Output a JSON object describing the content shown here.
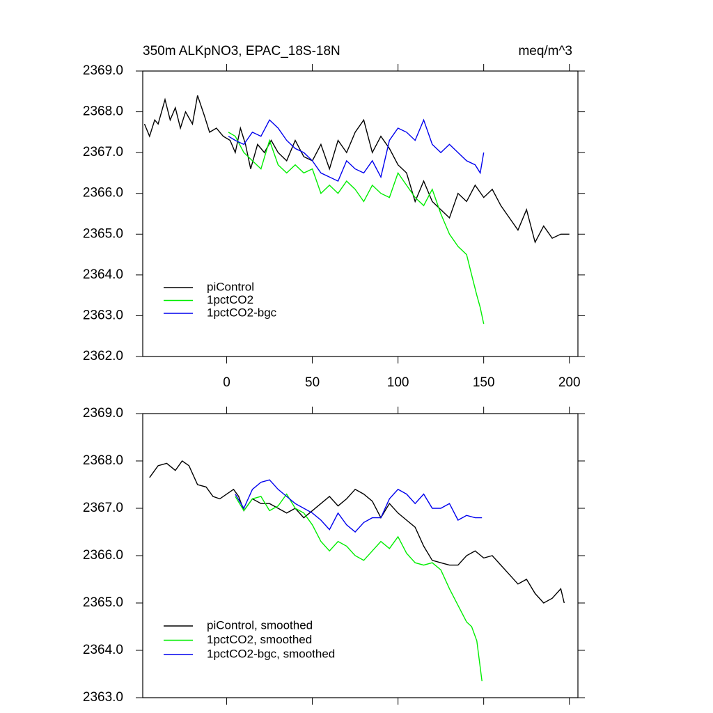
{
  "chart_data": [
    {
      "type": "line",
      "title": "350m ALKpNO3, EPAC_18S-18N",
      "units": "meq/m^3",
      "xlim": [
        -49,
        205
      ],
      "xticks": [
        0,
        50,
        100,
        150,
        200
      ],
      "ylim": [
        2362,
        2369
      ],
      "yticks": [
        {
          "value": 2362,
          "label": "2362.0"
        },
        {
          "value": 2363,
          "label": "2363.0"
        },
        {
          "value": 2364,
          "label": "2364.0"
        },
        {
          "value": 2365,
          "label": "2365.0"
        },
        {
          "value": 2366,
          "label": "2366.0"
        },
        {
          "value": 2367,
          "label": "2367.0"
        },
        {
          "value": 2368,
          "label": "2368.0"
        },
        {
          "value": 2369,
          "label": "2369.0"
        }
      ],
      "legend": "lower left",
      "series": [
        {
          "name": "piControl",
          "color": "#000000",
          "x": [
            -48,
            -45,
            -42,
            -40,
            -36,
            -33,
            -30,
            -27,
            -24,
            -20,
            -17,
            -13,
            -10,
            -6,
            -2,
            2,
            5,
            8,
            11,
            14,
            18,
            22,
            26,
            30,
            35,
            40,
            45,
            50,
            55,
            60,
            65,
            70,
            75,
            80,
            85,
            90,
            95,
            100,
            105,
            110,
            115,
            120,
            125,
            130,
            135,
            140,
            145,
            150,
            155,
            160,
            165,
            170,
            175,
            180,
            185,
            190,
            195,
            200
          ],
          "values": [
            2367.7,
            2367.4,
            2367.8,
            2367.7,
            2368.3,
            2367.8,
            2368.1,
            2367.6,
            2368.0,
            2367.7,
            2368.4,
            2367.9,
            2367.5,
            2367.6,
            2367.4,
            2367.3,
            2367.0,
            2367.6,
            2367.2,
            2366.6,
            2367.2,
            2367.0,
            2367.3,
            2367.0,
            2366.8,
            2367.3,
            2366.9,
            2366.8,
            2367.2,
            2366.6,
            2367.3,
            2367.0,
            2367.5,
            2367.8,
            2367.0,
            2367.4,
            2367.1,
            2366.7,
            2366.5,
            2365.8,
            2366.3,
            2365.8,
            2365.6,
            2365.4,
            2366.0,
            2365.8,
            2366.2,
            2365.9,
            2366.1,
            2365.7,
            2365.4,
            2365.1,
            2365.6,
            2364.8,
            2365.2,
            2364.9,
            2365.0,
            2365.0
          ]
        },
        {
          "name": "1pctCO2",
          "color": "#00ee00",
          "x": [
            1,
            5,
            10,
            15,
            20,
            25,
            30,
            35,
            40,
            45,
            50,
            55,
            60,
            65,
            70,
            75,
            80,
            85,
            90,
            95,
            100,
            105,
            110,
            115,
            120,
            125,
            130,
            135,
            140,
            143,
            146,
            148,
            150
          ],
          "values": [
            2367.5,
            2367.4,
            2367.0,
            2366.8,
            2366.6,
            2367.3,
            2366.7,
            2366.5,
            2366.7,
            2366.5,
            2366.6,
            2366.0,
            2366.2,
            2366.0,
            2366.3,
            2366.1,
            2365.8,
            2366.2,
            2366.0,
            2365.9,
            2366.5,
            2366.2,
            2365.9,
            2365.7,
            2366.1,
            2365.5,
            2365.0,
            2364.7,
            2364.5,
            2364.0,
            2363.5,
            2363.2,
            2362.8
          ]
        },
        {
          "name": "1pctCO2-bgc",
          "color": "#0000ee",
          "x": [
            1,
            5,
            10,
            15,
            20,
            25,
            30,
            35,
            40,
            45,
            50,
            55,
            60,
            65,
            70,
            75,
            80,
            85,
            90,
            95,
            100,
            105,
            110,
            115,
            120,
            125,
            130,
            135,
            140,
            145,
            148,
            150
          ],
          "values": [
            2367.4,
            2367.3,
            2367.2,
            2367.5,
            2367.4,
            2367.8,
            2367.6,
            2367.3,
            2367.1,
            2367.0,
            2366.8,
            2366.5,
            2366.4,
            2366.3,
            2366.8,
            2366.6,
            2366.5,
            2366.8,
            2366.4,
            2367.3,
            2367.6,
            2367.5,
            2367.3,
            2367.8,
            2367.2,
            2367.0,
            2367.2,
            2367.0,
            2366.8,
            2366.7,
            2366.5,
            2367.0
          ]
        }
      ]
    },
    {
      "type": "line",
      "xlim": [
        -49,
        205
      ],
      "ylim": [
        2363,
        2369
      ],
      "yticks": [
        {
          "value": 2363,
          "label": "2363.0"
        },
        {
          "value": 2364,
          "label": "2364.0"
        },
        {
          "value": 2365,
          "label": "2365.0"
        },
        {
          "value": 2366,
          "label": "2366.0"
        },
        {
          "value": 2367,
          "label": "2367.0"
        },
        {
          "value": 2368,
          "label": "2368.0"
        },
        {
          "value": 2369,
          "label": "2369.0"
        }
      ],
      "legend": "lower left",
      "series": [
        {
          "name": "piControl, smoothed",
          "color": "#000000",
          "x": [
            -45,
            -40,
            -35,
            -30,
            -26,
            -22,
            -17,
            -12,
            -8,
            -4,
            0,
            4,
            7,
            10,
            15,
            20,
            25,
            30,
            35,
            40,
            45,
            50,
            55,
            60,
            65,
            70,
            75,
            80,
            85,
            90,
            95,
            100,
            105,
            110,
            115,
            120,
            125,
            130,
            135,
            140,
            145,
            150,
            155,
            160,
            165,
            170,
            175,
            180,
            185,
            190,
            195,
            197
          ],
          "values": [
            2367.65,
            2367.9,
            2367.95,
            2367.8,
            2368.0,
            2367.9,
            2367.5,
            2367.45,
            2367.25,
            2367.2,
            2367.3,
            2367.4,
            2367.25,
            2366.95,
            2367.2,
            2367.1,
            2367.1,
            2367.0,
            2366.9,
            2367.0,
            2366.8,
            2366.95,
            2367.1,
            2367.25,
            2367.05,
            2367.2,
            2367.4,
            2367.3,
            2367.15,
            2366.8,
            2367.1,
            2366.9,
            2366.75,
            2366.6,
            2366.2,
            2365.9,
            2365.85,
            2365.8,
            2365.8,
            2366.0,
            2366.1,
            2365.95,
            2366.0,
            2365.8,
            2365.6,
            2365.4,
            2365.5,
            2365.2,
            2365.0,
            2365.1,
            2365.3,
            2365.0
          ]
        },
        {
          "name": "1pctCO2, smoothed",
          "color": "#00ee00",
          "x": [
            5,
            10,
            15,
            20,
            25,
            30,
            35,
            40,
            45,
            50,
            55,
            60,
            65,
            70,
            75,
            80,
            85,
            90,
            95,
            100,
            105,
            110,
            115,
            120,
            125,
            130,
            135,
            140,
            143,
            146,
            149
          ],
          "values": [
            2367.25,
            2366.95,
            2367.2,
            2367.25,
            2366.95,
            2367.05,
            2367.3,
            2367.0,
            2366.9,
            2366.65,
            2366.3,
            2366.1,
            2366.3,
            2366.2,
            2366.0,
            2365.9,
            2366.1,
            2366.3,
            2366.15,
            2366.4,
            2366.05,
            2365.85,
            2365.8,
            2365.85,
            2365.7,
            2365.3,
            2364.95,
            2364.6,
            2364.5,
            2364.2,
            2363.35
          ]
        },
        {
          "name": "1pctCO2-bgc, smoothed",
          "color": "#0000ee",
          "x": [
            5,
            10,
            15,
            20,
            25,
            30,
            35,
            40,
            45,
            50,
            55,
            60,
            65,
            70,
            75,
            80,
            85,
            90,
            95,
            100,
            105,
            110,
            115,
            120,
            125,
            130,
            135,
            140,
            145,
            149
          ],
          "values": [
            2367.3,
            2367.0,
            2367.4,
            2367.55,
            2367.6,
            2367.4,
            2367.25,
            2367.1,
            2367.0,
            2366.9,
            2366.75,
            2366.55,
            2366.9,
            2366.65,
            2366.5,
            2366.7,
            2366.8,
            2366.8,
            2367.2,
            2367.4,
            2367.3,
            2367.1,
            2367.3,
            2367.0,
            2367.0,
            2367.1,
            2366.75,
            2366.85,
            2366.8,
            2366.8
          ]
        }
      ]
    }
  ]
}
